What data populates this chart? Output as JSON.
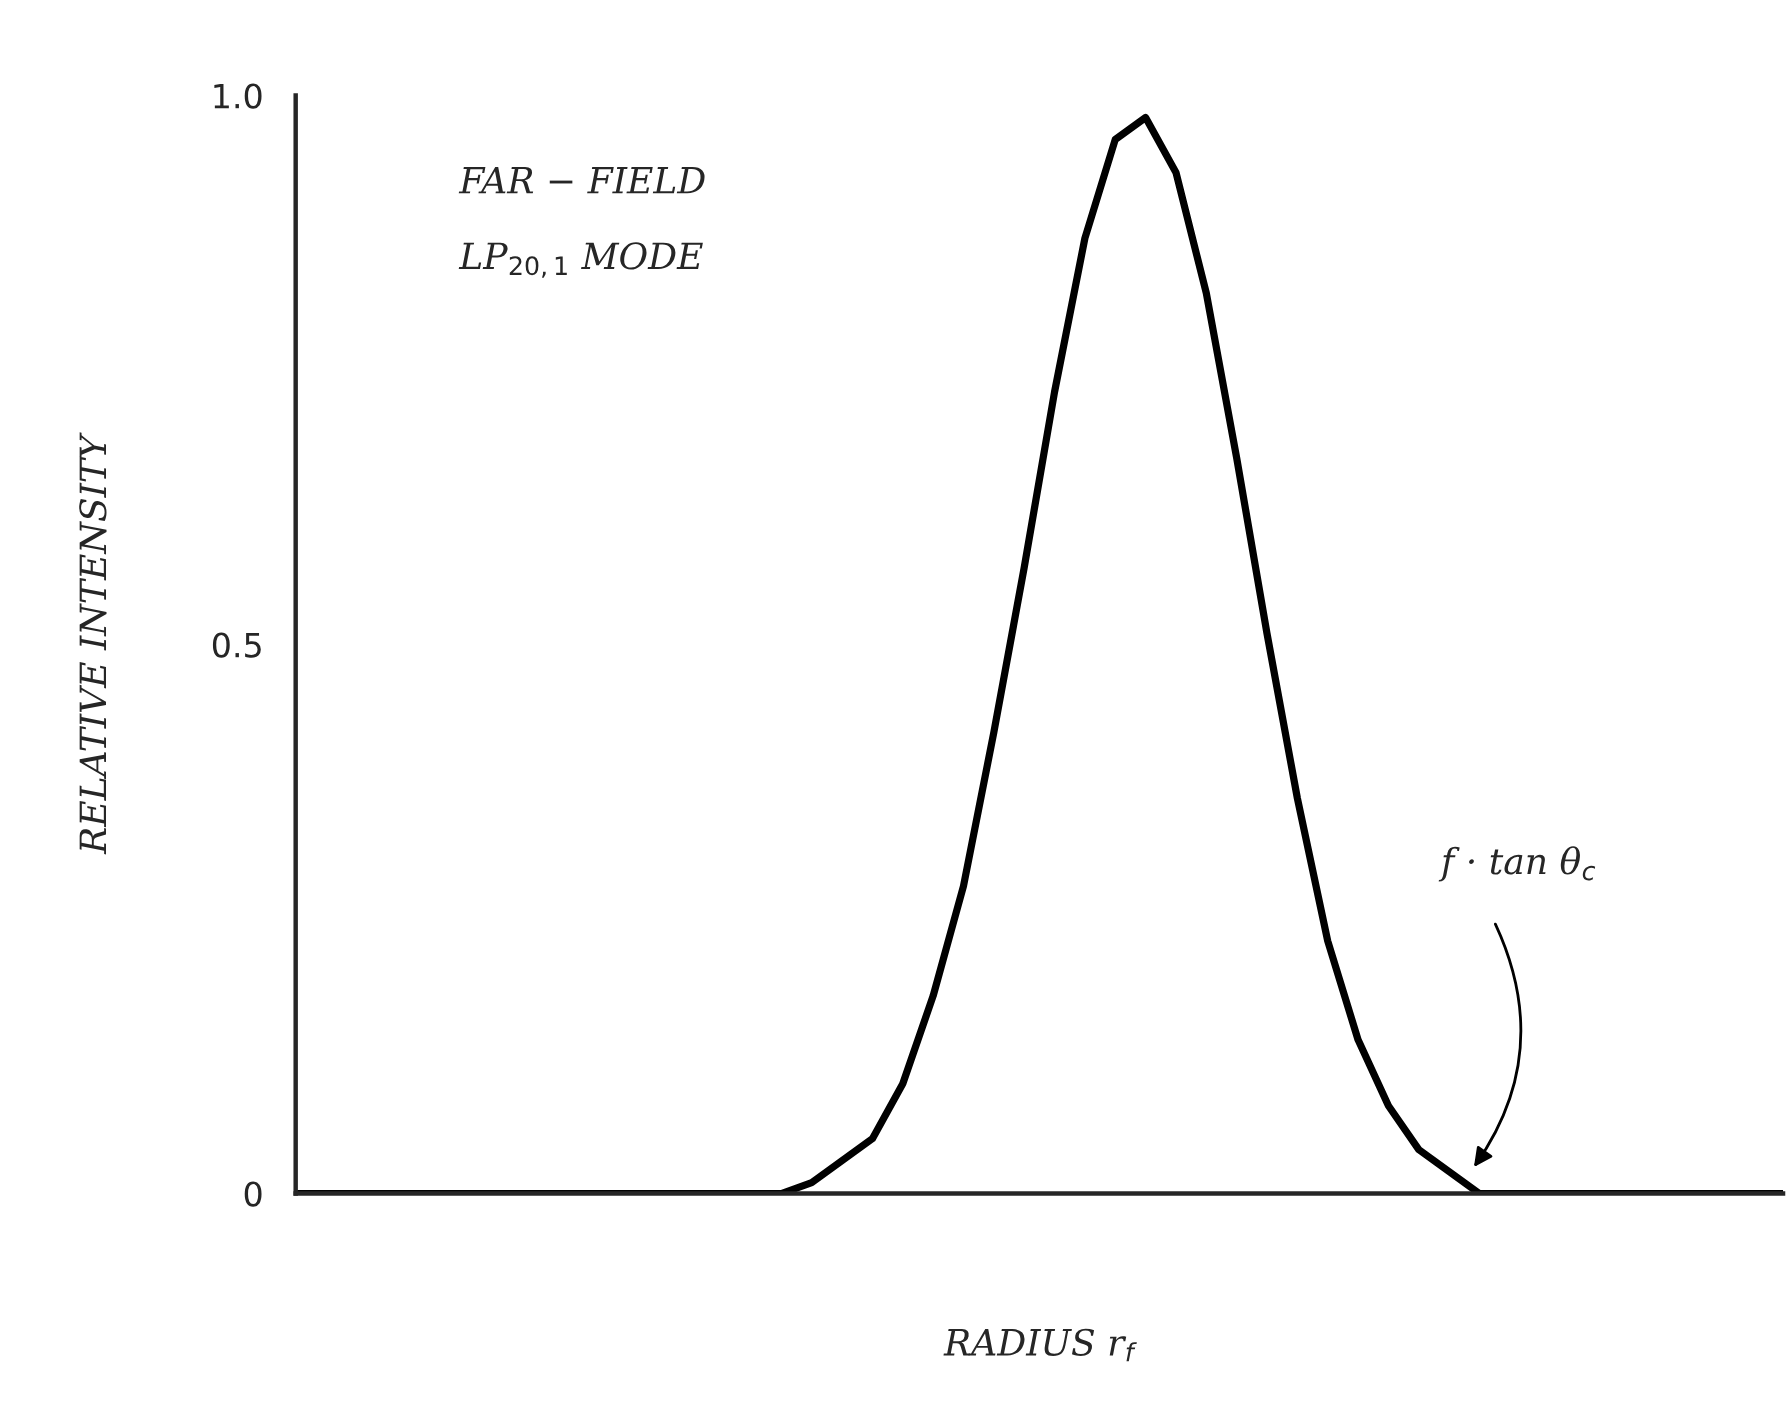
{
  "chart_data": {
    "type": "line",
    "xlabel": "RADIUS r$_{f}$",
    "ylabel": "RELATIVE INTENSITY",
    "annotations": [
      "FAR − FIELD",
      "LP$_{20,1}$ MODE",
      "f · tan θ$_{c}$"
    ],
    "categories": [
      null,
      null,
      null,
      null,
      null,
      null,
      null,
      null,
      null,
      null,
      null,
      null,
      null,
      null,
      null,
      null,
      null,
      null,
      null,
      null,
      null,
      null,
      null,
      null,
      null,
      null,
      null,
      null,
      null,
      null,
      null,
      null,
      null,
      null,
      null,
      null,
      null,
      null,
      null,
      null,
      null,
      null,
      null,
      null,
      null,
      null,
      null,
      null,
      null,
      null
    ],
    "series": [
      {
        "color": "#000000",
        "values": [
          0,
          0,
          0,
          0,
          0,
          0,
          0,
          0,
          0,
          0,
          0,
          0,
          0,
          0,
          0,
          0,
          0,
          0.01,
          0.03,
          0.05,
          0.1,
          0.18,
          0.28,
          0.42,
          0.57,
          0.73,
          0.87,
          0.96,
          0.98,
          0.93,
          0.82,
          0.67,
          0.51,
          0.36,
          0.23,
          0.14,
          0.08,
          0.04,
          0.02,
          0,
          0,
          0,
          0,
          0,
          0,
          0,
          0,
          0,
          0,
          0
        ]
      }
    ],
    "ylim": [
      0,
      1.0
    ],
    "yticks": [
      0,
      {
        "value": 0.5,
        "label": "0.5"
      },
      {
        "value": 1.0,
        "label": "1.0"
      }
    ],
    "grid": false,
    "legend": false,
    "marker": "none",
    "line_style": "solid"
  }
}
